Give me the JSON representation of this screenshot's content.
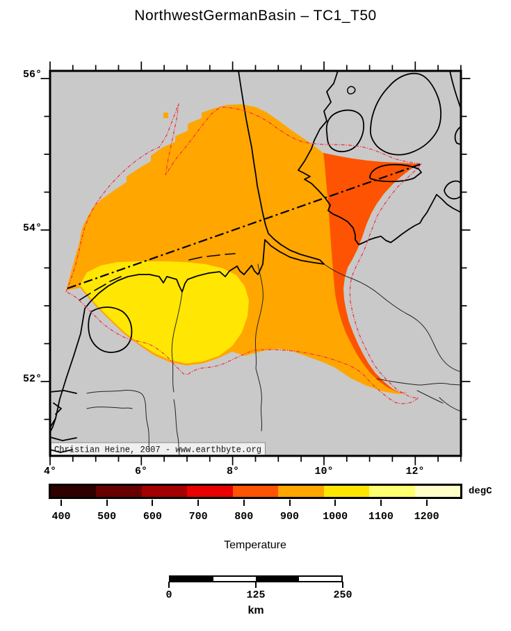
{
  "figure": {
    "title": "NorthwestGermanBasin – TC1_T50"
  },
  "map": {
    "attribution": "Christian Heine, 2007 - www.earthbyte.org",
    "axes": {
      "lon_labels": [
        "4°",
        "6°",
        "8°",
        "10°",
        "12°"
      ],
      "lat_labels": [
        "56°",
        "54°",
        "52°"
      ]
    },
    "colors": {
      "background": "#c9c9c9",
      "frame": "#000000",
      "coastline": "#000000",
      "rivers_borders": "#222222",
      "basin_outline": "#f22c3d",
      "transect": "#000000",
      "region_yellow": "#ffe703",
      "region_orange": "#ffa600",
      "region_orange_red": "#fd5302"
    }
  },
  "colorbar": {
    "unit_label": "degC",
    "title": "Temperature",
    "tick_labels": [
      "400",
      "500",
      "600",
      "700",
      "800",
      "900",
      "1000",
      "1100",
      "1200"
    ],
    "range": [
      375,
      1275
    ],
    "segment_colors": [
      "#2e0000",
      "#670000",
      "#a30000",
      "#e80000",
      "#fd5302",
      "#ffa600",
      "#ffe703",
      "#ffff72",
      "#ffffc8"
    ]
  },
  "scalebar": {
    "labels": [
      "0",
      "125",
      "250"
    ],
    "unit_label": "km",
    "segment_colors": [
      "#000000",
      "#ffffff",
      "#000000",
      "#ffffff"
    ]
  }
}
